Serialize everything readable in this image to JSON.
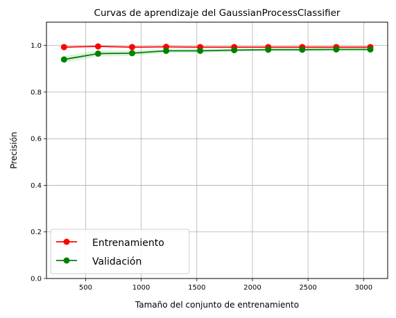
{
  "chart_data": {
    "type": "line",
    "title": "Curvas de aprendizaje del GaussianProcessClassifier",
    "xlabel": "Tamaño del conjunto de entrenamiento",
    "ylabel": "Precisión",
    "xlim": [
      148,
      3216
    ],
    "ylim": [
      0.0,
      1.1
    ],
    "x_ticks": [
      500,
      1000,
      1500,
      2000,
      2500,
      3000
    ],
    "y_ticks": [
      0.0,
      0.2,
      0.4,
      0.6,
      0.8,
      1.0
    ],
    "x_tick_labels": [
      "500",
      "1000",
      "1500",
      "2000",
      "2500",
      "3000"
    ],
    "y_tick_labels": [
      "0.0",
      "0.2",
      "0.4",
      "0.6",
      "0.8",
      "1.0"
    ],
    "grid": true,
    "legend_position": "lower-left",
    "x": [
      306,
      612,
      918,
      1224,
      1530,
      1836,
      2142,
      2448,
      2754,
      3060
    ],
    "series": [
      {
        "name": "Entrenamiento",
        "color": "#ff0000",
        "band_color": "#ff0000",
        "values": [
          0.993,
          0.996,
          0.993,
          0.994,
          0.993,
          0.993,
          0.993,
          0.993,
          0.993,
          0.993
        ],
        "band": [
          [
            0.99,
            0.996
          ],
          [
            0.994,
            0.998
          ],
          [
            0.991,
            0.995
          ],
          [
            0.992,
            0.996
          ],
          [
            0.991,
            0.995
          ],
          [
            0.991,
            0.995
          ],
          [
            0.991,
            0.995
          ],
          [
            0.991,
            0.995
          ],
          [
            0.991,
            0.995
          ],
          [
            0.991,
            0.995
          ]
        ]
      },
      {
        "name": "Validación",
        "color": "#008000",
        "band_color": "#2ca02c",
        "values": [
          0.94,
          0.965,
          0.967,
          0.977,
          0.977,
          0.98,
          0.982,
          0.982,
          0.983,
          0.983
        ],
        "band": [
          [
            0.925,
            0.955
          ],
          [
            0.952,
            0.978
          ],
          [
            0.955,
            0.979
          ],
          [
            0.968,
            0.986
          ],
          [
            0.968,
            0.986
          ],
          [
            0.972,
            0.988
          ],
          [
            0.975,
            0.989
          ],
          [
            0.975,
            0.989
          ],
          [
            0.976,
            0.99
          ],
          [
            0.976,
            0.99
          ]
        ]
      }
    ]
  }
}
